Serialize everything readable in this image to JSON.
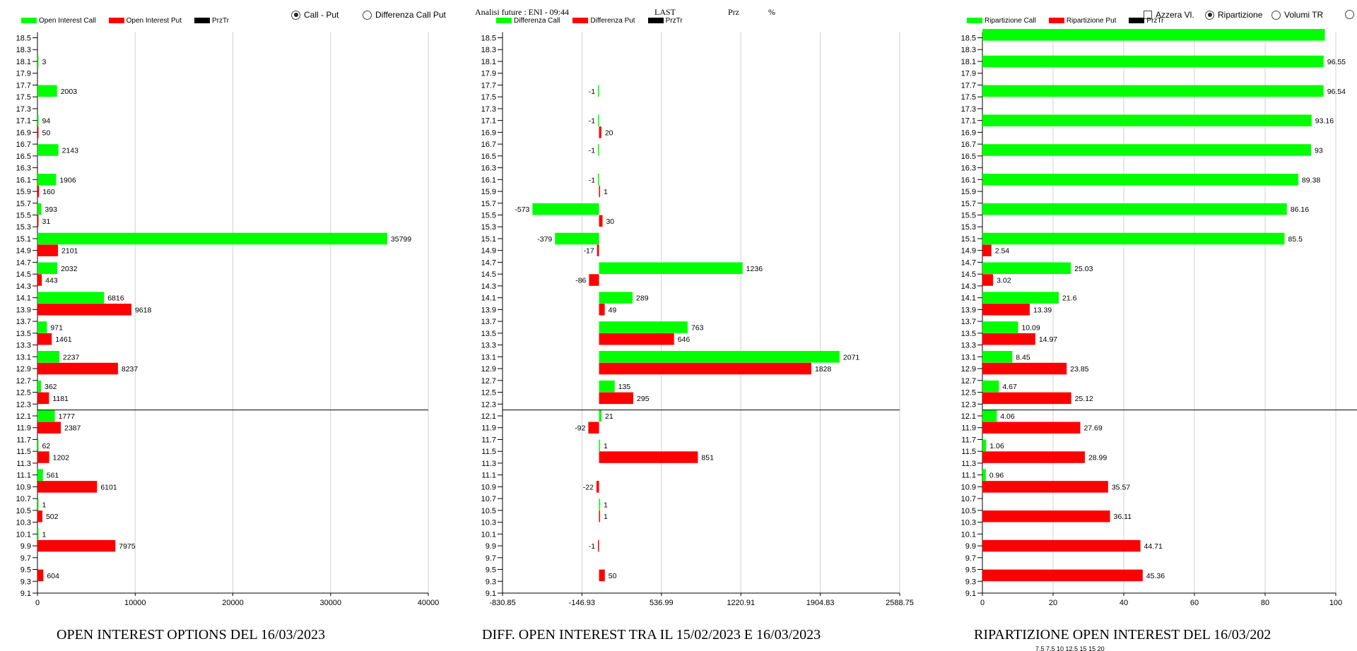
{
  "header": {
    "analisi": "Analisi future : ENI - 09:44",
    "last": "LAST",
    "prz": "Prz",
    "pct": "%"
  },
  "options_left": [
    {
      "label": "Call - Put",
      "selected": true
    },
    {
      "label": "Differenza Call Put",
      "selected": false
    }
  ],
  "options_right": [
    {
      "label": "Azzera Vl.",
      "type": "checkbox",
      "selected": false
    },
    {
      "label": "Ripartizione",
      "type": "radio",
      "selected": true
    },
    {
      "label": "Volumi TR",
      "type": "radio",
      "selected": false
    }
  ],
  "colors": {
    "call": "#00ff00",
    "put": "#ff0000",
    "prztr": "#000000",
    "grid": "#d0d0d0"
  },
  "legends": {
    "panel1": [
      "Open Interest Call",
      "Open Interest Put",
      "PrzTr"
    ],
    "panel2": [
      "Differenza Call",
      "Differenza Put",
      "PrzTr"
    ],
    "panel3": [
      "Ripartizione Call",
      "Ripartizione Put",
      "PrzTr"
    ]
  },
  "titles": {
    "panel1": "OPEN INTEREST OPTIONS DEL 16/03/2023",
    "panel2": "DIFF. OPEN INTEREST TRA IL 15/02/2023 E 16/03/2023",
    "panel3": "RIPARTIZIONE OPEN INTEREST DEL 16/03/202"
  },
  "footer_partial": "7.5    7.5    10    12.5    15    15    20",
  "chart_data": [
    {
      "type": "bar",
      "orientation": "horizontal",
      "y_ticks": [
        "18.5",
        "18.3",
        "18.1",
        "17.9",
        "17.7",
        "17.5",
        "17.3",
        "17.1",
        "16.9",
        "16.7",
        "16.5",
        "16.3",
        "16.1",
        "15.9",
        "15.7",
        "15.5",
        "15.3",
        "15.1",
        "14.9",
        "14.7",
        "14.5",
        "14.3",
        "14.1",
        "13.9",
        "13.7",
        "13.5",
        "13.3",
        "13.1",
        "12.9",
        "12.7",
        "12.5",
        "12.3",
        "12.1",
        "11.9",
        "11.7",
        "11.5",
        "11.3",
        "11.1",
        "10.9",
        "10.7",
        "10.5",
        "10.3",
        "10.1",
        "9.9",
        "9.7",
        "9.5",
        "9.3",
        "9.1"
      ],
      "xlim": [
        0,
        40000
      ],
      "x_ticks": [
        "0",
        "10000",
        "20000",
        "30000",
        "40000"
      ],
      "price_line_at": 12.2,
      "series": [
        {
          "name": "Open Interest Call",
          "points": [
            {
              "y": 18.1,
              "v": 3,
              "label": "3"
            },
            {
              "y": 17.6,
              "v": 2003,
              "label": "2003"
            },
            {
              "y": 17.1,
              "v": 94,
              "label": "94"
            },
            {
              "y": 16.6,
              "v": 2143,
              "label": "2143"
            },
            {
              "y": 16.1,
              "v": 1906,
              "label": "1906"
            },
            {
              "y": 15.6,
              "v": 393,
              "label": "393"
            },
            {
              "y": 15.1,
              "v": 35799,
              "label": "35799"
            },
            {
              "y": 14.6,
              "v": 2032,
              "label": "2032"
            },
            {
              "y": 14.1,
              "v": 6816,
              "label": "6816"
            },
            {
              "y": 13.6,
              "v": 971,
              "label": "971"
            },
            {
              "y": 13.1,
              "v": 2237,
              "label": "2237"
            },
            {
              "y": 12.6,
              "v": 362,
              "label": "362"
            },
            {
              "y": 12.1,
              "v": 1777,
              "label": "1777"
            },
            {
              "y": 11.6,
              "v": 62,
              "label": "62"
            },
            {
              "y": 11.1,
              "v": 561,
              "label": "561"
            },
            {
              "y": 10.6,
              "v": 1,
              "label": "1"
            },
            {
              "y": 10.1,
              "v": 1,
              "label": "1"
            }
          ]
        },
        {
          "name": "Open Interest Put",
          "points": [
            {
              "y": 16.9,
              "v": 50,
              "label": "50"
            },
            {
              "y": 15.9,
              "v": 160,
              "label": "160"
            },
            {
              "y": 15.4,
              "v": 31,
              "label": "31"
            },
            {
              "y": 14.9,
              "v": 2101,
              "label": "2101"
            },
            {
              "y": 14.4,
              "v": 443,
              "label": "443"
            },
            {
              "y": 13.9,
              "v": 9618,
              "label": "9618"
            },
            {
              "y": 13.4,
              "v": 1461,
              "label": "1461"
            },
            {
              "y": 12.9,
              "v": 8237,
              "label": "8237"
            },
            {
              "y": 12.4,
              "v": 1181,
              "label": "1181"
            },
            {
              "y": 11.9,
              "v": 2387,
              "label": "2387"
            },
            {
              "y": 11.4,
              "v": 1202,
              "label": "1202"
            },
            {
              "y": 10.9,
              "v": 6101,
              "label": "6101"
            },
            {
              "y": 10.4,
              "v": 502,
              "label": "502"
            },
            {
              "y": 9.9,
              "v": 7975,
              "label": "7975"
            },
            {
              "y": 9.4,
              "v": 604,
              "label": "604"
            }
          ]
        }
      ]
    },
    {
      "type": "bar",
      "orientation": "horizontal",
      "y_ticks": [
        "18.5",
        "18.3",
        "18.1",
        "17.9",
        "17.7",
        "17.5",
        "17.3",
        "17.1",
        "16.9",
        "16.7",
        "16.5",
        "16.3",
        "16.1",
        "15.9",
        "15.7",
        "15.5",
        "15.3",
        "15.1",
        "14.9",
        "14.7",
        "14.5",
        "14.3",
        "14.1",
        "13.9",
        "13.7",
        "13.5",
        "13.3",
        "13.1",
        "12.9",
        "12.7",
        "12.5",
        "12.3",
        "12.1",
        "11.9",
        "11.7",
        "11.5",
        "11.3",
        "11.1",
        "10.9",
        "10.7",
        "10.5",
        "10.3",
        "10.1",
        "9.9",
        "9.7",
        "9.5",
        "9.3",
        "9.1"
      ],
      "xlim": [
        -830.85,
        2588.75
      ],
      "x_ticks": [
        "-830.85",
        "-146.93",
        "536.99",
        "1220.91",
        "1904.83",
        "2588.75"
      ],
      "price_line_at": 12.2,
      "series": [
        {
          "name": "Differenza Call",
          "points": [
            {
              "y": 17.6,
              "v": -1,
              "label": "-1"
            },
            {
              "y": 17.1,
              "v": -1,
              "label": "-1"
            },
            {
              "y": 16.6,
              "v": -1,
              "label": "-1"
            },
            {
              "y": 16.1,
              "v": -1,
              "label": "-1"
            },
            {
              "y": 15.6,
              "v": -573,
              "label": "-573"
            },
            {
              "y": 15.1,
              "v": -379,
              "label": "-379"
            },
            {
              "y": 14.6,
              "v": 1236,
              "label": "1236"
            },
            {
              "y": 14.1,
              "v": 289,
              "label": "289"
            },
            {
              "y": 13.6,
              "v": 763,
              "label": "763"
            },
            {
              "y": 13.1,
              "v": 2071,
              "label": "2071"
            },
            {
              "y": 12.6,
              "v": 135,
              "label": "135"
            },
            {
              "y": 12.1,
              "v": 21,
              "label": "21"
            },
            {
              "y": 11.6,
              "v": 1,
              "label": "1"
            },
            {
              "y": 10.6,
              "v": 1,
              "label": "1"
            }
          ]
        },
        {
          "name": "Differenza Put",
          "points": [
            {
              "y": 16.9,
              "v": 20,
              "label": "20"
            },
            {
              "y": 15.9,
              "v": 1,
              "label": "1"
            },
            {
              "y": 15.4,
              "v": 30,
              "label": "30"
            },
            {
              "y": 14.9,
              "v": -17,
              "label": "-17"
            },
            {
              "y": 14.4,
              "v": -86,
              "label": "-86"
            },
            {
              "y": 13.9,
              "v": 49,
              "label": "49"
            },
            {
              "y": 13.4,
              "v": 646,
              "label": "646"
            },
            {
              "y": 12.9,
              "v": 1828,
              "label": "1828"
            },
            {
              "y": 12.4,
              "v": 295,
              "label": "295"
            },
            {
              "y": 11.9,
              "v": -92,
              "label": "-92"
            },
            {
              "y": 11.4,
              "v": 851,
              "label": "851"
            },
            {
              "y": 10.9,
              "v": -22,
              "label": "-22"
            },
            {
              "y": 10.4,
              "v": 1,
              "label": "1"
            },
            {
              "y": 9.9,
              "v": -1,
              "label": "-1"
            },
            {
              "y": 9.4,
              "v": 50,
              "label": "50"
            }
          ]
        }
      ]
    },
    {
      "type": "bar",
      "orientation": "horizontal",
      "y_ticks": [
        "18.5",
        "18.3",
        "18.1",
        "17.9",
        "17.7",
        "17.5",
        "17.3",
        "17.1",
        "16.9",
        "16.7",
        "16.5",
        "16.3",
        "16.1",
        "15.9",
        "15.7",
        "15.5",
        "15.3",
        "15.1",
        "14.9",
        "14.7",
        "14.5",
        "14.3",
        "14.1",
        "13.9",
        "13.7",
        "13.5",
        "13.3",
        "13.1",
        "12.9",
        "12.7",
        "12.5",
        "12.3",
        "12.1",
        "11.9",
        "11.7",
        "11.5",
        "11.3",
        "11.1",
        "10.9",
        "10.7",
        "10.5",
        "10.3",
        "10.1",
        "9.9",
        "9.7",
        "9.5",
        "9.3",
        "9.1"
      ],
      "xlim": [
        0,
        100
      ],
      "x_ticks": [
        "0",
        "20",
        "40",
        "60",
        "80",
        "100"
      ],
      "price_line_at": 12.2,
      "series": [
        {
          "name": "Ripartizione Call",
          "points": [
            {
              "y": 18.55,
              "v": 96.9,
              "label": ""
            },
            {
              "y": 18.1,
              "v": 96.55,
              "label": "96.55"
            },
            {
              "y": 17.6,
              "v": 96.54,
              "label": "96.54"
            },
            {
              "y": 17.1,
              "v": 93.16,
              "label": "93.16"
            },
            {
              "y": 16.6,
              "v": 93,
              "label": "93"
            },
            {
              "y": 16.1,
              "v": 89.38,
              "label": "89.38"
            },
            {
              "y": 15.6,
              "v": 86.16,
              "label": "86.16"
            },
            {
              "y": 15.1,
              "v": 85.5,
              "label": "85.5"
            },
            {
              "y": 14.6,
              "v": 25.03,
              "label": "25.03"
            },
            {
              "y": 14.1,
              "v": 21.6,
              "label": "21.6"
            },
            {
              "y": 13.6,
              "v": 10.09,
              "label": "10.09"
            },
            {
              "y": 13.1,
              "v": 8.45,
              "label": "8.45"
            },
            {
              "y": 12.6,
              "v": 4.67,
              "label": "4.67"
            },
            {
              "y": 12.1,
              "v": 4.06,
              "label": "4.06"
            },
            {
              "y": 11.6,
              "v": 1.06,
              "label": "1.06"
            },
            {
              "y": 11.1,
              "v": 0.96,
              "label": "0.96"
            }
          ]
        },
        {
          "name": "Ripartizione Put",
          "points": [
            {
              "y": 14.9,
              "v": 2.54,
              "label": "2.54"
            },
            {
              "y": 14.4,
              "v": 3.02,
              "label": "3.02"
            },
            {
              "y": 13.9,
              "v": 13.39,
              "label": "13.39"
            },
            {
              "y": 13.4,
              "v": 14.97,
              "label": "14.97"
            },
            {
              "y": 12.9,
              "v": 23.85,
              "label": "23.85"
            },
            {
              "y": 12.4,
              "v": 25.12,
              "label": "25.12"
            },
            {
              "y": 11.9,
              "v": 27.69,
              "label": "27.69"
            },
            {
              "y": 11.4,
              "v": 28.99,
              "label": "28.99"
            },
            {
              "y": 10.9,
              "v": 35.57,
              "label": "35.57"
            },
            {
              "y": 10.4,
              "v": 36.11,
              "label": "36.11"
            },
            {
              "y": 9.9,
              "v": 44.71,
              "label": "44.71"
            },
            {
              "y": 9.4,
              "v": 45.36,
              "label": "45.36"
            }
          ]
        }
      ]
    }
  ]
}
